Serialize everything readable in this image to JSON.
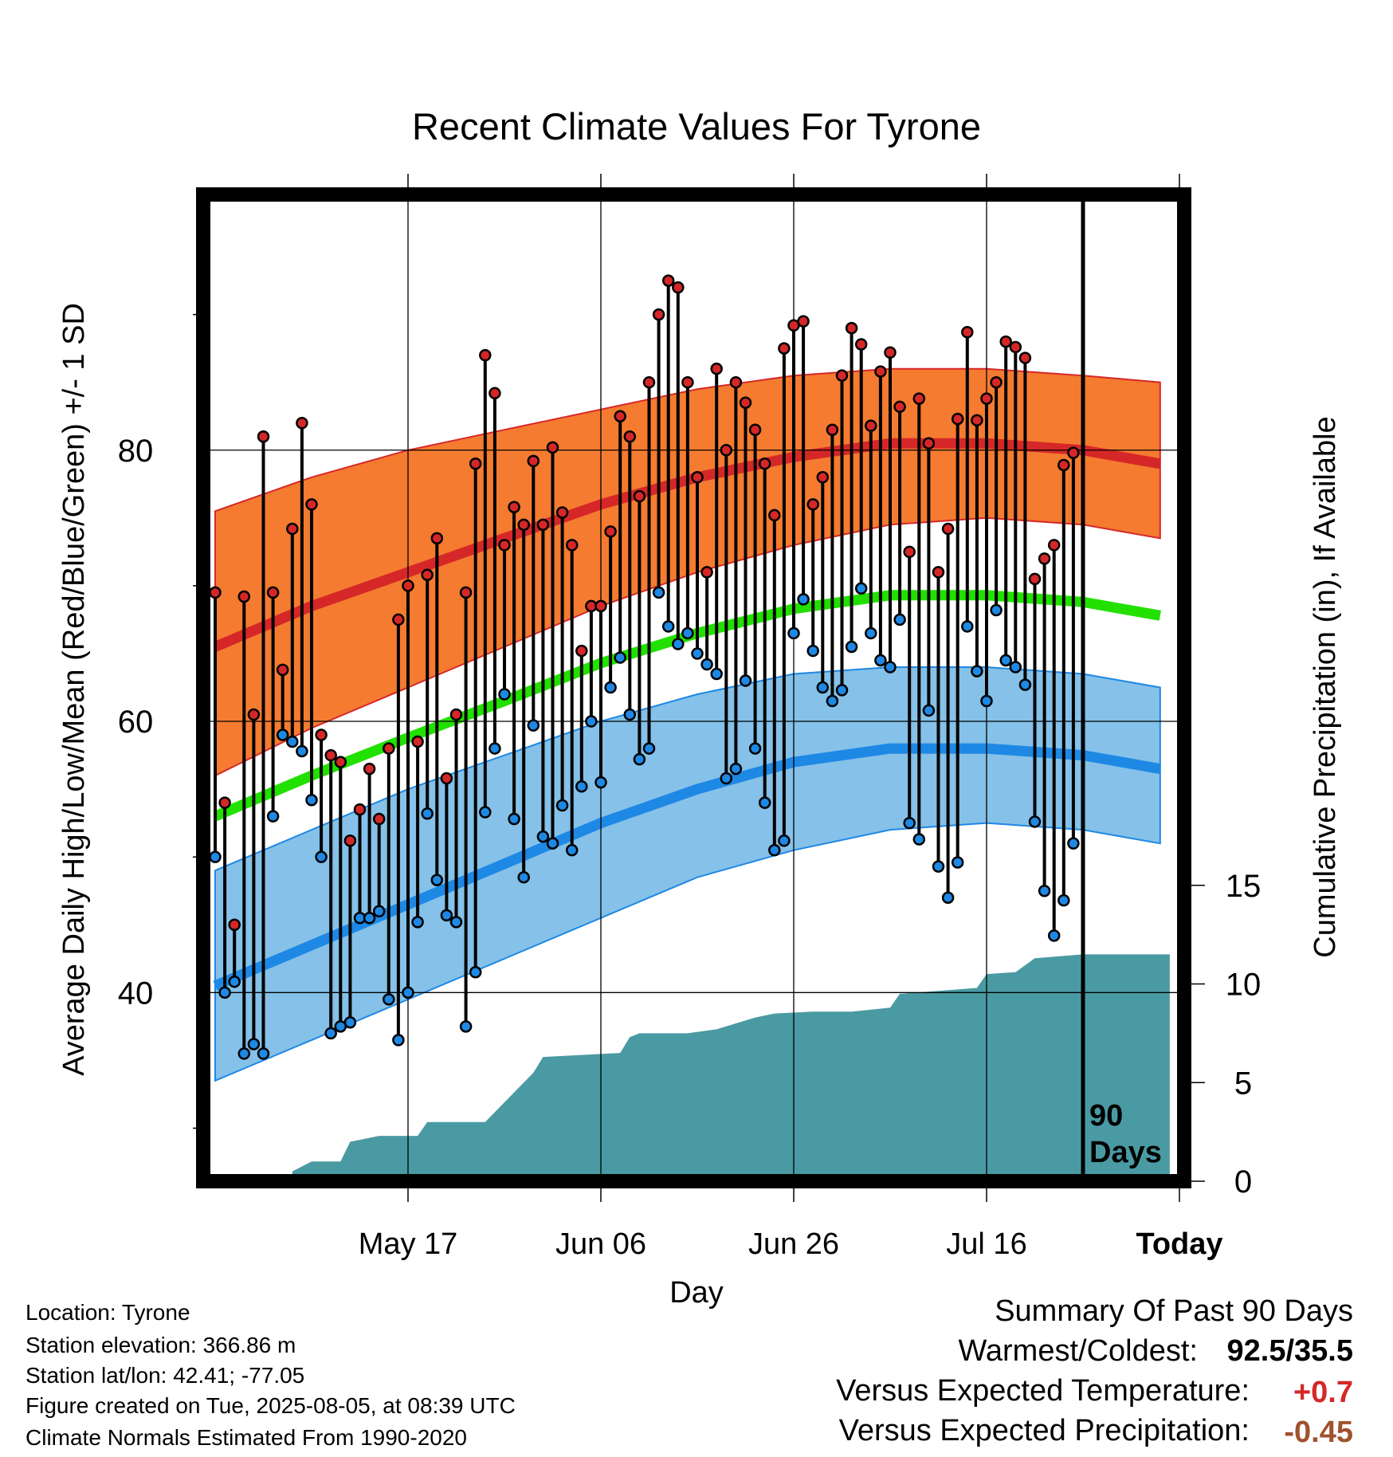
{
  "chart_data": {
    "type": "line",
    "title": "Recent Climate Values For Tyrone",
    "xlabel": "Day",
    "ylabel": "Average Daily High/Low/Mean (Red/Blue/Green) +/- 1 SD",
    "y2label": "Cumulative Precipitation (in), If Available",
    "xticks": [
      "May 17",
      "Jun 06",
      "Jun 26",
      "Jul 16",
      "Today"
    ],
    "yticks": [
      "40",
      "60",
      "80"
    ],
    "y2ticks": [
      "0",
      "5",
      "10",
      "15"
    ],
    "ylim": [
      26.5,
      98.5
    ],
    "y2lim": [
      0,
      40
    ],
    "days_window": [
      -90,
      10
    ],
    "today_label": "90 Days",
    "colors": {
      "high": "#d62728",
      "low": "#1e88e5",
      "mean": "#22e000",
      "high_band": "#f47b30",
      "low_band": "#85c1e8",
      "precip": "#4a9aa3"
    },
    "normal_high": [
      {
        "day": -90,
        "mean": 65.5,
        "sd_low": 56.0,
        "sd_high": 75.5
      },
      {
        "day": -80,
        "mean": 68.5,
        "sd_low": 59.5,
        "sd_high": 78.0
      },
      {
        "day": -70,
        "mean": 71.0,
        "sd_low": 62.5,
        "sd_high": 80.0
      },
      {
        "day": -60,
        "mean": 73.5,
        "sd_low": 65.5,
        "sd_high": 81.5
      },
      {
        "day": -50,
        "mean": 76.0,
        "sd_low": 68.5,
        "sd_high": 83.0
      },
      {
        "day": -40,
        "mean": 78.0,
        "sd_low": 71.0,
        "sd_high": 84.5
      },
      {
        "day": -30,
        "mean": 79.5,
        "sd_low": 73.0,
        "sd_high": 85.5
      },
      {
        "day": -20,
        "mean": 80.5,
        "sd_low": 74.5,
        "sd_high": 86.0
      },
      {
        "day": -10,
        "mean": 80.5,
        "sd_low": 75.0,
        "sd_high": 86.0
      },
      {
        "day": 0,
        "mean": 80.0,
        "sd_low": 74.5,
        "sd_high": 85.5
      },
      {
        "day": 8,
        "mean": 79.0,
        "sd_low": 73.5,
        "sd_high": 85.0
      }
    ],
    "normal_low": [
      {
        "day": -90,
        "mean": 40.5,
        "sd_low": 33.5,
        "sd_high": 49.0
      },
      {
        "day": -80,
        "mean": 43.5,
        "sd_low": 36.5,
        "sd_high": 52.0
      },
      {
        "day": -70,
        "mean": 46.5,
        "sd_low": 39.5,
        "sd_high": 55.0
      },
      {
        "day": -60,
        "mean": 49.5,
        "sd_low": 42.5,
        "sd_high": 57.5
      },
      {
        "day": -50,
        "mean": 52.5,
        "sd_low": 45.5,
        "sd_high": 60.0
      },
      {
        "day": -40,
        "mean": 55.0,
        "sd_low": 48.5,
        "sd_high": 62.0
      },
      {
        "day": -30,
        "mean": 57.0,
        "sd_low": 50.5,
        "sd_high": 63.5
      },
      {
        "day": -20,
        "mean": 58.0,
        "sd_low": 52.0,
        "sd_high": 64.0
      },
      {
        "day": -10,
        "mean": 58.0,
        "sd_low": 52.5,
        "sd_high": 64.0
      },
      {
        "day": 0,
        "mean": 57.5,
        "sd_low": 52.0,
        "sd_high": 63.5
      },
      {
        "day": 8,
        "mean": 56.5,
        "sd_low": 51.0,
        "sd_high": 62.5
      }
    ],
    "normal_mean": [
      {
        "day": -90,
        "mean": 53.0
      },
      {
        "day": -80,
        "mean": 56.0
      },
      {
        "day": -70,
        "mean": 58.8
      },
      {
        "day": -60,
        "mean": 61.5
      },
      {
        "day": -50,
        "mean": 64.3
      },
      {
        "day": -40,
        "mean": 66.5
      },
      {
        "day": -30,
        "mean": 68.3
      },
      {
        "day": -20,
        "mean": 69.3
      },
      {
        "day": -10,
        "mean": 69.3
      },
      {
        "day": 0,
        "mean": 68.8
      },
      {
        "day": 8,
        "mean": 67.8
      }
    ],
    "daily": [
      {
        "day": -90,
        "high": 69.5,
        "low": 50.0
      },
      {
        "day": -89,
        "high": 54.0,
        "low": 40.0
      },
      {
        "day": -88,
        "high": 45.0,
        "low": 40.8
      },
      {
        "day": -87,
        "high": 69.2,
        "low": 35.5
      },
      {
        "day": -86,
        "high": 60.5,
        "low": 36.2
      },
      {
        "day": -85,
        "high": 81.0,
        "low": 35.5
      },
      {
        "day": -84,
        "high": 69.5,
        "low": 53.0
      },
      {
        "day": -83,
        "high": 63.8,
        "low": 59.0
      },
      {
        "day": -82,
        "high": 74.2,
        "low": 58.5
      },
      {
        "day": -81,
        "high": 82.0,
        "low": 57.8
      },
      {
        "day": -80,
        "high": 76.0,
        "low": 54.2
      },
      {
        "day": -79,
        "high": 59.0,
        "low": 50.0
      },
      {
        "day": -78,
        "high": 57.5,
        "low": 37.0
      },
      {
        "day": -77,
        "high": 57.0,
        "low": 37.5
      },
      {
        "day": -76,
        "high": 51.2,
        "low": 37.8
      },
      {
        "day": -75,
        "high": 53.5,
        "low": 45.5
      },
      {
        "day": -74,
        "high": 56.5,
        "low": 45.5
      },
      {
        "day": -73,
        "high": 52.8,
        "low": 46.0
      },
      {
        "day": -72,
        "high": 58.0,
        "low": 39.5
      },
      {
        "day": -71,
        "high": 67.5,
        "low": 36.5
      },
      {
        "day": -70,
        "high": 70.0,
        "low": 40.0
      },
      {
        "day": -69,
        "high": 58.5,
        "low": 45.2
      },
      {
        "day": -68,
        "high": 70.8,
        "low": 53.2
      },
      {
        "day": -67,
        "high": 73.5,
        "low": 48.3
      },
      {
        "day": -66,
        "high": 55.8,
        "low": 45.7
      },
      {
        "day": -65,
        "high": 60.5,
        "low": 45.2
      },
      {
        "day": -64,
        "high": 69.5,
        "low": 37.5
      },
      {
        "day": -63,
        "high": 79.0,
        "low": 41.5
      },
      {
        "day": -62,
        "high": 87.0,
        "low": 53.3
      },
      {
        "day": -61,
        "high": 84.2,
        "low": 58.0
      },
      {
        "day": -60,
        "high": 73.0,
        "low": 62.0
      },
      {
        "day": -59,
        "high": 75.8,
        "low": 52.8
      },
      {
        "day": -58,
        "high": 74.5,
        "low": 48.5
      },
      {
        "day": -57,
        "high": 79.2,
        "low": 59.7
      },
      {
        "day": -56,
        "high": 74.5,
        "low": 51.5
      },
      {
        "day": -55,
        "high": 80.2,
        "low": 51.0
      },
      {
        "day": -54,
        "high": 75.4,
        "low": 53.8
      },
      {
        "day": -53,
        "high": 73.0,
        "low": 50.5
      },
      {
        "day": -52,
        "high": 65.2,
        "low": 55.2
      },
      {
        "day": -51,
        "high": 68.5,
        "low": 60.0
      },
      {
        "day": -50,
        "high": 68.5,
        "low": 55.5
      },
      {
        "day": -49,
        "high": 74.0,
        "low": 62.5
      },
      {
        "day": -48,
        "high": 82.5,
        "low": 64.7
      },
      {
        "day": -47,
        "high": 81.0,
        "low": 60.5
      },
      {
        "day": -46,
        "high": 76.6,
        "low": 57.2
      },
      {
        "day": -45,
        "high": 85.0,
        "low": 58.0
      },
      {
        "day": -44,
        "high": 90.0,
        "low": 69.5
      },
      {
        "day": -43,
        "high": 92.5,
        "low": 67.0
      },
      {
        "day": -42,
        "high": 92.0,
        "low": 65.7
      },
      {
        "day": -41,
        "high": 85.0,
        "low": 66.5
      },
      {
        "day": -40,
        "high": 78.0,
        "low": 65.0
      },
      {
        "day": -39,
        "high": 71.0,
        "low": 64.2
      },
      {
        "day": -38,
        "high": 86.0,
        "low": 63.5
      },
      {
        "day": -37,
        "high": 80.0,
        "low": 55.8
      },
      {
        "day": -36,
        "high": 85.0,
        "low": 56.5
      },
      {
        "day": -35,
        "high": 83.5,
        "low": 63.0
      },
      {
        "day": -34,
        "high": 81.5,
        "low": 58.0
      },
      {
        "day": -33,
        "high": 79.0,
        "low": 54.0
      },
      {
        "day": -32,
        "high": 75.2,
        "low": 50.5
      },
      {
        "day": -31,
        "high": 87.5,
        "low": 51.2
      },
      {
        "day": -30,
        "high": 89.2,
        "low": 66.5
      },
      {
        "day": -29,
        "high": 89.5,
        "low": 69.0
      },
      {
        "day": -28,
        "high": 76.0,
        "low": 65.2
      },
      {
        "day": -27,
        "high": 78.0,
        "low": 62.5
      },
      {
        "day": -26,
        "high": 81.5,
        "low": 61.5
      },
      {
        "day": -25,
        "high": 85.5,
        "low": 62.3
      },
      {
        "day": -24,
        "high": 89.0,
        "low": 65.5
      },
      {
        "day": -23,
        "high": 87.8,
        "low": 69.8
      },
      {
        "day": -22,
        "high": 81.8,
        "low": 66.5
      },
      {
        "day": -21,
        "high": 85.8,
        "low": 64.5
      },
      {
        "day": -20,
        "high": 87.2,
        "low": 64.0
      },
      {
        "day": -19,
        "high": 83.2,
        "low": 67.5
      },
      {
        "day": -18,
        "high": 72.5,
        "low": 52.5
      },
      {
        "day": -17,
        "high": 83.8,
        "low": 51.3
      },
      {
        "day": -16,
        "high": 80.5,
        "low": 60.8
      },
      {
        "day": -15,
        "high": 71.0,
        "low": 49.3
      },
      {
        "day": -14,
        "high": 74.2,
        "low": 47.0
      },
      {
        "day": -13,
        "high": 82.3,
        "low": 49.6
      },
      {
        "day": -12,
        "high": 88.7,
        "low": 67.0
      },
      {
        "day": -11,
        "high": 82.2,
        "low": 63.7
      },
      {
        "day": -10,
        "high": 83.8,
        "low": 61.5
      },
      {
        "day": -9,
        "high": 85.0,
        "low": 68.2
      },
      {
        "day": -8,
        "high": 88.0,
        "low": 64.5
      },
      {
        "day": -7,
        "high": 87.6,
        "low": 64.0
      },
      {
        "day": -6,
        "high": 86.8,
        "low": 62.7
      },
      {
        "day": -5,
        "high": 70.5,
        "low": 52.6
      },
      {
        "day": -4,
        "high": 72.0,
        "low": 47.5
      },
      {
        "day": -3,
        "high": 73.0,
        "low": 44.2
      },
      {
        "day": -2,
        "high": 78.9,
        "low": 46.8
      },
      {
        "day": -1,
        "high": 79.8,
        "low": 51.0
      }
    ],
    "precip_cumulative": [
      {
        "day": -90,
        "value": 0
      },
      {
        "day": -82,
        "value": 0
      },
      {
        "day": -82,
        "value": 0.5
      },
      {
        "day": -80,
        "value": 1.0
      },
      {
        "day": -78,
        "value": 1.0
      },
      {
        "day": -77,
        "value": 1.0
      },
      {
        "day": -76,
        "value": 2.0
      },
      {
        "day": -73,
        "value": 2.3
      },
      {
        "day": -69,
        "value": 2.3
      },
      {
        "day": -68,
        "value": 3.0
      },
      {
        "day": -62,
        "value": 3.0
      },
      {
        "day": -61,
        "value": 3.5
      },
      {
        "day": -60,
        "value": 4.0
      },
      {
        "day": -59,
        "value": 4.5
      },
      {
        "day": -58,
        "value": 5.0
      },
      {
        "day": -57,
        "value": 5.5
      },
      {
        "day": -56,
        "value": 6.3
      },
      {
        "day": -48,
        "value": 6.5
      },
      {
        "day": -47,
        "value": 7.3
      },
      {
        "day": -46,
        "value": 7.5
      },
      {
        "day": -41,
        "value": 7.5
      },
      {
        "day": -38,
        "value": 7.7
      },
      {
        "day": -36,
        "value": 8.0
      },
      {
        "day": -34,
        "value": 8.3
      },
      {
        "day": -32,
        "value": 8.5
      },
      {
        "day": -28,
        "value": 8.6
      },
      {
        "day": -24,
        "value": 8.6
      },
      {
        "day": -22,
        "value": 8.7
      },
      {
        "day": -20,
        "value": 8.8
      },
      {
        "day": -19,
        "value": 9.5
      },
      {
        "day": -11,
        "value": 9.8
      },
      {
        "day": -10,
        "value": 10.5
      },
      {
        "day": -7,
        "value": 10.6
      },
      {
        "day": -5,
        "value": 11.3
      },
      {
        "day": 0,
        "value": 11.5
      },
      {
        "day": 9,
        "value": 11.5
      }
    ]
  },
  "location_info": {
    "location": "Location: Tyrone",
    "elevation": "Station elevation: 366.86 m",
    "latlon": "Station lat/lon: 42.41; -77.05",
    "created": "Figure created on Tue, 2025-08-05, at 08:39 UTC",
    "normals": "Climate Normals Estimated From 1990-2020"
  },
  "summary": {
    "title": "Summary Of Past 90 Days",
    "warm_cold_label": "Warmest/Coldest:",
    "warm_cold_value": "92.5/35.5",
    "temp_label": "Versus Expected Temperature:",
    "temp_value": "+0.7",
    "precip_label": "Versus Expected Precipitation:",
    "precip_value": "-0.45",
    "temp_color": "#d62728",
    "precip_color": "#a0522d"
  }
}
